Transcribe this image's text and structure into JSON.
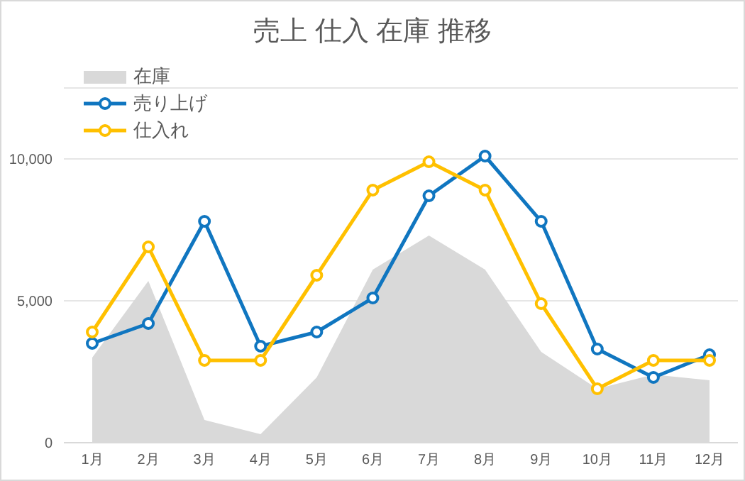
{
  "chart_data": {
    "type": "line",
    "title": "売上 仕入 在庫 推移",
    "categories": [
      "1月",
      "2月",
      "3月",
      "4月",
      "5月",
      "6月",
      "7月",
      "8月",
      "9月",
      "10月",
      "11月",
      "12月"
    ],
    "series": [
      {
        "name": "在庫",
        "type": "area",
        "color": "#d9d9d9",
        "values": [
          3000,
          5700,
          800,
          300,
          2300,
          6100,
          7300,
          6100,
          3200,
          1900,
          2400,
          2200
        ]
      },
      {
        "name": "売り上げ",
        "color": "#1076c0",
        "marker": "circle",
        "values": [
          3500,
          4200,
          7800,
          3400,
          3900,
          5100,
          8700,
          10100,
          7800,
          3300,
          2300,
          3100
        ]
      },
      {
        "name": "仕入れ",
        "color": "#ffc000",
        "marker": "circle",
        "values": [
          3900,
          6900,
          2900,
          2900,
          5900,
          8900,
          9900,
          8900,
          4900,
          1900,
          2900,
          2900
        ]
      }
    ],
    "ylim": [
      0,
      12500
    ],
    "yticks": [
      0,
      {
        "value": 5000,
        "label": "5,000"
      },
      {
        "value": 10000,
        "label": "10,000"
      }
    ],
    "grid": "y",
    "legend": "top left"
  }
}
